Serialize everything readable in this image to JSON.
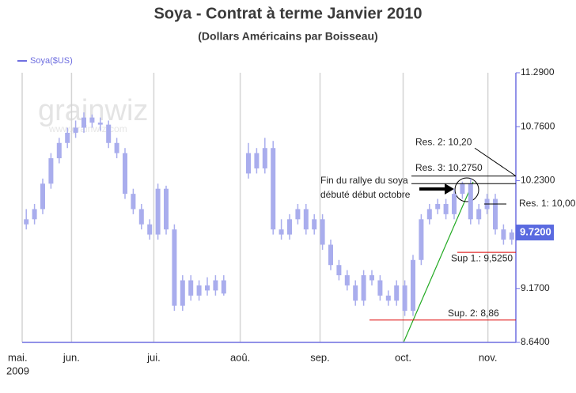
{
  "chart_data": {
    "type": "candlestick",
    "title": "Soya - Contrat à terme Janvier 2010",
    "subtitle": "(Dollars Américains par Boisseau)",
    "watermark": "grainwiz",
    "watermark_url": "www.grainwiz.com",
    "year_label": "2009",
    "color": "#a9aded",
    "axis_color": "#6f6fe0",
    "series": [
      {
        "name": "Soya($US)",
        "open": [
          9.8,
          9.85,
          9.95,
          10.2,
          10.45,
          10.6,
          10.7,
          10.75,
          10.85,
          10.8,
          10.78,
          10.6,
          10.5,
          10.1,
          9.95,
          9.8,
          9.7,
          10.15,
          9.75,
          9.0,
          9.25,
          9.1,
          9.2,
          9.15,
          9.25,
          null,
          null,
          10.3,
          10.5,
          10.35,
          10.55,
          9.75,
          9.7,
          9.85,
          9.95,
          9.75,
          9.85,
          9.6,
          9.4,
          9.3,
          9.2,
          9.05,
          9.3,
          9.25,
          9.1,
          9.05,
          9.2,
          8.95,
          9.45,
          9.85,
          9.95,
          10.0,
          9.9,
          10.1,
          10.2,
          9.85,
          9.95,
          10.05,
          9.75,
          9.65
        ],
        "high": [
          9.95,
          10.0,
          10.25,
          10.5,
          10.65,
          10.75,
          10.82,
          10.9,
          10.88,
          10.85,
          10.82,
          10.65,
          10.55,
          10.15,
          10.0,
          9.85,
          10.2,
          10.18,
          9.8,
          9.3,
          9.3,
          9.25,
          9.28,
          9.3,
          9.3,
          null,
          null,
          10.6,
          10.55,
          10.65,
          10.62,
          9.85,
          9.9,
          10.0,
          10.0,
          9.9,
          9.9,
          9.65,
          9.45,
          9.35,
          9.25,
          9.35,
          9.35,
          9.3,
          9.15,
          9.25,
          9.25,
          9.5,
          9.9,
          10.0,
          10.05,
          10.05,
          10.15,
          10.22,
          10.25,
          10.0,
          10.1,
          10.1,
          9.8,
          9.75
        ],
        "low": [
          9.75,
          9.8,
          9.9,
          10.15,
          10.4,
          10.55,
          10.65,
          10.7,
          10.75,
          10.72,
          10.55,
          10.45,
          10.05,
          9.9,
          9.75,
          9.65,
          9.65,
          9.7,
          8.95,
          8.95,
          9.05,
          9.05,
          9.1,
          9.1,
          9.1,
          null,
          null,
          10.25,
          10.3,
          10.3,
          9.7,
          9.65,
          9.65,
          9.8,
          9.7,
          9.7,
          9.55,
          9.35,
          9.25,
          9.15,
          9.0,
          9.0,
          9.2,
          9.05,
          9.0,
          9.0,
          8.9,
          8.9,
          9.4,
          9.8,
          9.9,
          9.85,
          9.85,
          10.05,
          9.8,
          9.8,
          9.9,
          9.7,
          9.6,
          9.6
        ],
        "close": [
          9.85,
          9.95,
          10.2,
          10.45,
          10.6,
          10.7,
          10.75,
          10.85,
          10.8,
          10.78,
          10.6,
          10.5,
          10.1,
          9.95,
          9.8,
          9.7,
          10.15,
          9.75,
          9.0,
          9.25,
          9.1,
          9.2,
          9.15,
          9.25,
          9.12,
          null,
          null,
          10.5,
          10.35,
          10.55,
          9.75,
          9.7,
          9.85,
          9.95,
          9.75,
          9.85,
          9.6,
          9.4,
          9.3,
          9.2,
          9.05,
          9.3,
          9.25,
          9.1,
          9.05,
          9.2,
          8.95,
          9.45,
          9.85,
          9.95,
          10.0,
          9.9,
          10.1,
          10.2,
          9.85,
          9.95,
          10.05,
          9.75,
          9.65,
          9.72
        ]
      }
    ],
    "xlim": [
      0,
      60
    ],
    "xticks": [
      {
        "value": 0,
        "label": "mai."
      },
      {
        "value": 6,
        "label": "jun."
      },
      {
        "value": 16,
        "label": "jui."
      },
      {
        "value": 26.5,
        "label": "aoû."
      },
      {
        "value": 36.2,
        "label": "sep."
      },
      {
        "value": 46.3,
        "label": "oct."
      },
      {
        "value": 56.6,
        "label": "nov."
      }
    ],
    "ylim": [
      8.64,
      11.29
    ],
    "yticks": [
      {
        "value": 8.64,
        "label": "8.6400"
      },
      {
        "value": 9.17,
        "label": "9.1700"
      },
      {
        "value": 10.23,
        "label": "10.2300"
      },
      {
        "value": 10.76,
        "label": "10.7600"
      },
      {
        "value": 11.29,
        "label": "11.2900"
      }
    ],
    "last_price": {
      "value": 9.72,
      "label": "9.7200"
    },
    "levels": [
      {
        "label": "Res. 2: 10,20",
        "value": 10.2,
        "color": "#000000"
      },
      {
        "label": "Res. 3: 10,2750",
        "value": 10.275,
        "color": "#000000"
      },
      {
        "label": "Res. 1: 10,00",
        "value": 10.0,
        "color": "#000000"
      },
      {
        "label": "Sup 1.: 9,5250",
        "value": 9.525,
        "color": "#dd0000"
      },
      {
        "label": "Sup. 2: 8,86",
        "value": 8.86,
        "color": "#dd0000"
      }
    ],
    "annotation": [
      "Fin du rallye du soya",
      "débuté début octobre"
    ]
  }
}
